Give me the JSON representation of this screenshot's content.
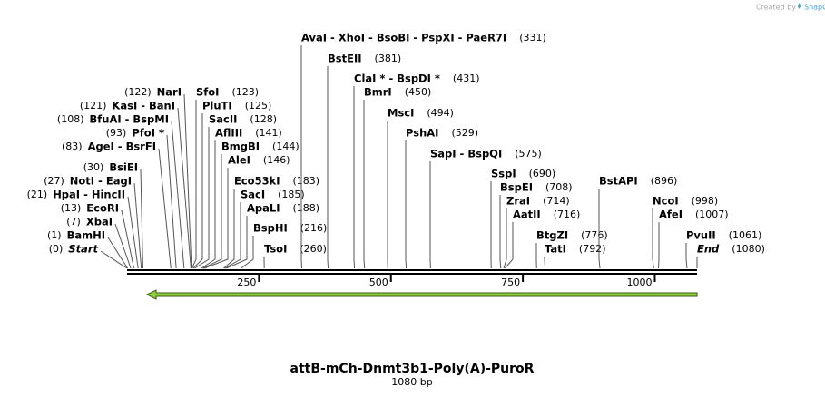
{
  "header": {
    "credit": "Created by",
    "brand": "SnapGene"
  },
  "map": {
    "ticks": [
      250,
      500,
      750,
      1000
    ],
    "sites": [
      {
        "name": "Start",
        "position": 0,
        "position_label": "(0)"
      },
      {
        "name": "BamHI",
        "position": 1,
        "position_label": "(1)"
      },
      {
        "name": "XbaI",
        "position": 7,
        "position_label": "(7)"
      },
      {
        "name": "EcoRI",
        "position": 13,
        "position_label": "(13)"
      },
      {
        "name": "HpaI  -  HincII",
        "position": 21,
        "position_label": "(21)"
      },
      {
        "name": "NotI  -  EagI",
        "position": 27,
        "position_label": "(27)"
      },
      {
        "name": "BsiEI",
        "position": 30,
        "position_label": "(30)"
      },
      {
        "name": "AgeI  -  BsrFI",
        "position": 83,
        "position_label": "(83)"
      },
      {
        "name": "PfoI *",
        "position": 93,
        "position_label": "(93)"
      },
      {
        "name": "BfuAI  -  BspMI",
        "position": 108,
        "position_label": "(108)"
      },
      {
        "name": "KasI  -  BanI",
        "position": 121,
        "position_label": "(121)"
      },
      {
        "name": "NarI",
        "position": 122,
        "position_label": "(122)"
      },
      {
        "name": "SfoI",
        "position": 123,
        "position_label": "(123)"
      },
      {
        "name": "PluTI",
        "position": 125,
        "position_label": "(125)"
      },
      {
        "name": "SacII",
        "position": 128,
        "position_label": "(128)"
      },
      {
        "name": "AflIII",
        "position": 141,
        "position_label": "(141)"
      },
      {
        "name": "BmgBI",
        "position": 144,
        "position_label": "(144)"
      },
      {
        "name": "AleI",
        "position": 146,
        "position_label": "(146)"
      },
      {
        "name": "Eco53kI",
        "position": 183,
        "position_label": "(183)"
      },
      {
        "name": "SacI",
        "position": 185,
        "position_label": "(185)"
      },
      {
        "name": "ApaLI",
        "position": 188,
        "position_label": "(188)"
      },
      {
        "name": "BspHI",
        "position": 216,
        "position_label": "(216)"
      },
      {
        "name": "TsoI",
        "position": 260,
        "position_label": "(260)"
      },
      {
        "name": "AvaI  -  XhoI  -  BsoBI  -  PspXI  -  PaeR7I",
        "position": 331,
        "position_label": "(331)"
      },
      {
        "name": "BstEII",
        "position": 381,
        "position_label": "(381)"
      },
      {
        "name": "ClaI *  -  BspDI *",
        "position": 431,
        "position_label": "(431)"
      },
      {
        "name": "BmrI",
        "position": 450,
        "position_label": "(450)"
      },
      {
        "name": "MscI",
        "position": 494,
        "position_label": "(494)"
      },
      {
        "name": "PshAI",
        "position": 529,
        "position_label": "(529)"
      },
      {
        "name": "SapI  -  BspQI",
        "position": 575,
        "position_label": "(575)"
      },
      {
        "name": "SspI",
        "position": 690,
        "position_label": "(690)"
      },
      {
        "name": "BspEI",
        "position": 708,
        "position_label": "(708)"
      },
      {
        "name": "ZraI",
        "position": 714,
        "position_label": "(714)"
      },
      {
        "name": "AatII",
        "position": 716,
        "position_label": "(716)"
      },
      {
        "name": "BtgZI",
        "position": 776,
        "position_label": "(776)"
      },
      {
        "name": "TatI",
        "position": 792,
        "position_label": "(792)"
      },
      {
        "name": "BstAPI",
        "position": 896,
        "position_label": "(896)"
      },
      {
        "name": "NcoI",
        "position": 998,
        "position_label": "(998)"
      },
      {
        "name": "AfeI",
        "position": 1007,
        "position_label": "(1007)"
      },
      {
        "name": "PvuII",
        "position": 1061,
        "position_label": "(1061)"
      },
      {
        "name": "End",
        "position": 1080,
        "position_label": "(1080)"
      }
    ]
  },
  "footer": {
    "title": "attB-mCh-Dnmt3b1-Poly(A)-PuroR",
    "size": "1080 bp"
  }
}
